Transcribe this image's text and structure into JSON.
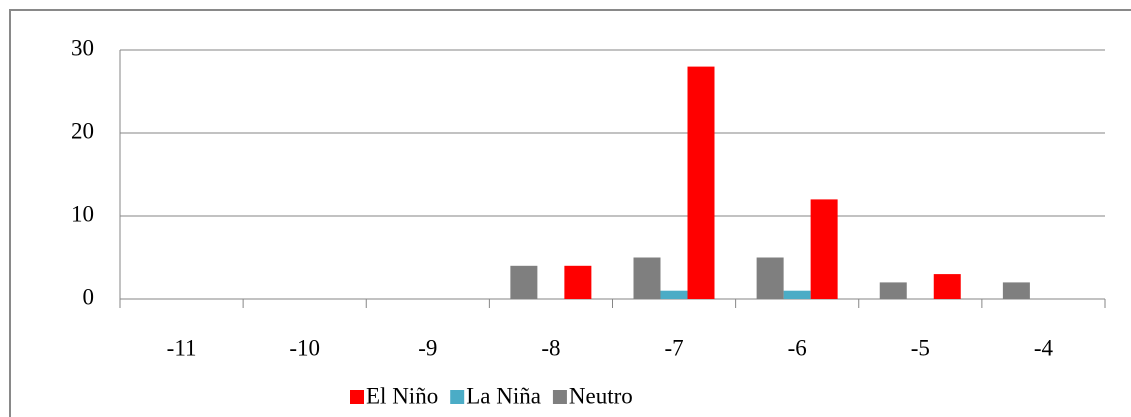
{
  "chart_data": {
    "type": "bar",
    "categories": [
      "-11",
      "-10",
      "-9",
      "-8",
      "-7",
      "-6",
      "-5",
      "-4"
    ],
    "series": [
      {
        "name": "El Niño",
        "color": "#ff0000",
        "values": [
          0,
          0,
          0,
          4,
          28,
          12,
          3,
          0
        ]
      },
      {
        "name": "La Niña",
        "color": "#4bacc6",
        "values": [
          0,
          0,
          0,
          0,
          1,
          1,
          0,
          0
        ]
      },
      {
        "name": "Neutro",
        "color": "#7f7f7f",
        "values": [
          0,
          0,
          0,
          4,
          5,
          5,
          2,
          2
        ]
      }
    ],
    "ylim": [
      0,
      30
    ],
    "yticks": [
      0,
      10,
      20,
      30
    ],
    "grid": true,
    "legend": "bottom"
  }
}
